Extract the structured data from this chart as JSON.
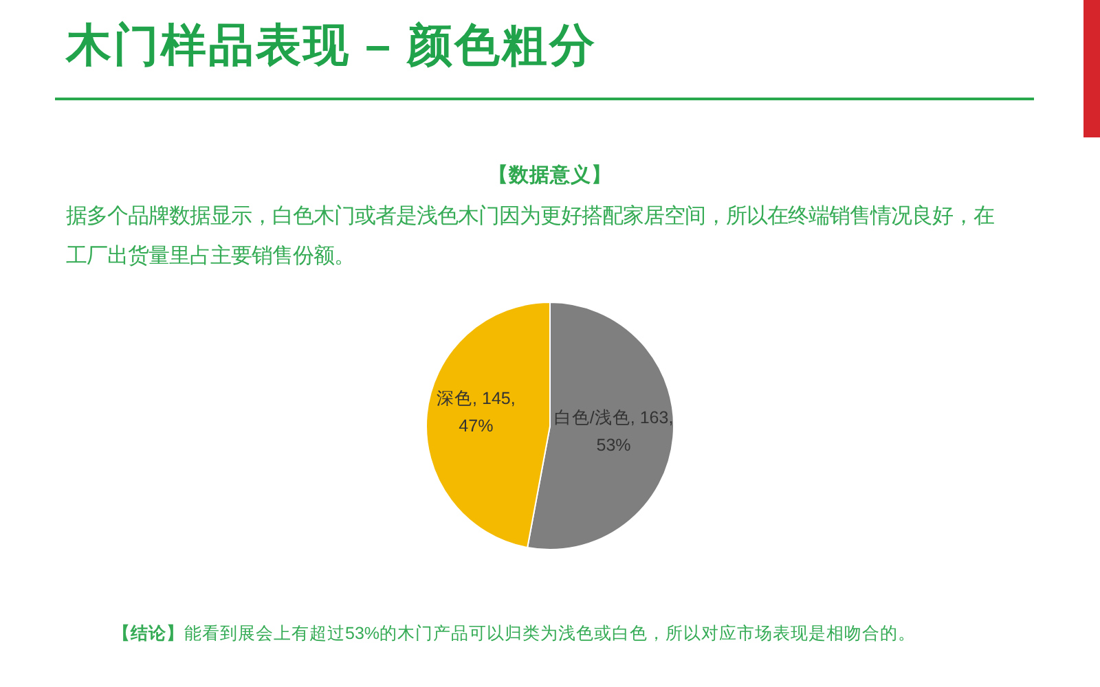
{
  "chart_data": {
    "type": "pie",
    "title": "木门样品表现 – 颜色粗分",
    "categories": [
      "白色/浅色",
      "深色"
    ],
    "values": [
      163,
      145
    ],
    "colors": [
      "#7f7f7f",
      "#f3ba00"
    ],
    "value_labels": [
      "163, 53%",
      "145, 47%"
    ],
    "annotations": [
      "【数据意义】",
      "据多个品牌数据显示，白色木门或者是浅色木门因为更好搭配家居空间，所以在终端销售情况良好，在工厂出货量里占主要销售份额。",
      "【结论】",
      "能看到展会上有超过53%的木门产品可以归类为浅色或白色，所以对应市场表现是相吻合的。"
    ]
  }
}
